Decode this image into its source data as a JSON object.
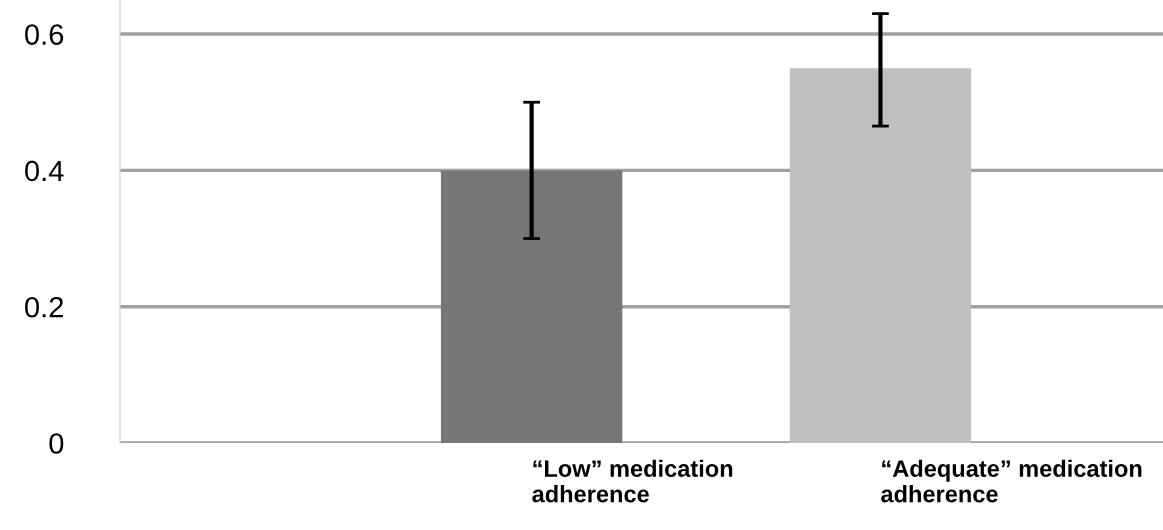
{
  "chart_data": {
    "type": "bar",
    "categories": [
      "“Low” medication\nadherence",
      "“Adequate” medication\nadherence"
    ],
    "values": [
      0.4,
      0.55
    ],
    "colors": [
      "#767676",
      "#c0c0c0"
    ],
    "errors": [
      [
        0.3,
        0.5
      ],
      [
        0.465,
        0.63
      ]
    ],
    "ylim": [
      0,
      0.65
    ],
    "yticks": [
      {
        "value": 0,
        "label": "0"
      },
      0.2,
      0.4,
      0.6
    ],
    "grid": "y"
  }
}
